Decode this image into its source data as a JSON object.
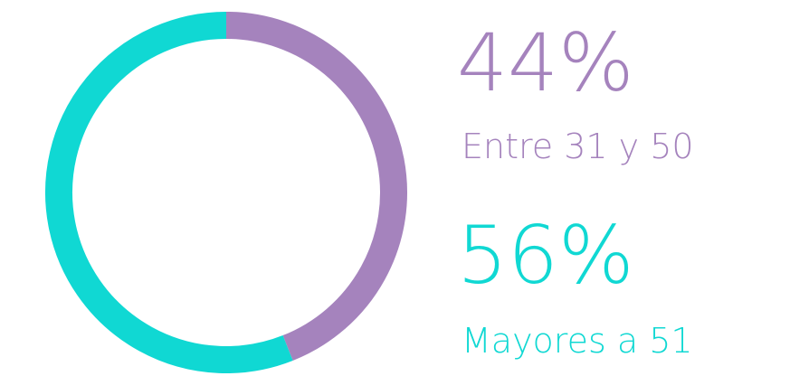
{
  "chart_data": {
    "type": "donut",
    "categories": [
      "Entre 31 y 50",
      "Mayores a 51"
    ],
    "values": [
      44,
      56
    ],
    "value_labels": [
      "44%",
      "56%"
    ],
    "colors": [
      "#a583bd",
      "#10d8d3"
    ]
  }
}
